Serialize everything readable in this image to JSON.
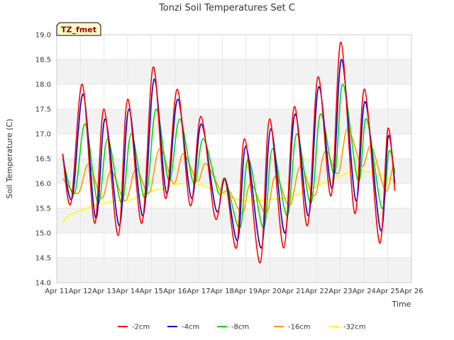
{
  "chart_data": {
    "type": "line",
    "title": "Tonzi Soil Temperatures Set C",
    "xlabel": "Time",
    "ylabel": "Soil Temperature (C)",
    "badge": "TZ_fmet",
    "xlim": [
      11,
      26
    ],
    "ylim": [
      14.0,
      19.0
    ],
    "x_ticks": [
      "Apr 11",
      "Apr 12",
      "Apr 13",
      "Apr 14",
      "Apr 15",
      "Apr 16",
      "Apr 17",
      "Apr 18",
      "Apr 19",
      "Apr 20",
      "Apr 21",
      "Apr 22",
      "Apr 23",
      "Apr 24",
      "Apr 25",
      "Apr 26"
    ],
    "y_ticks": [
      "14.0",
      "14.5",
      "15.0",
      "15.5",
      "16.0",
      "16.5",
      "17.0",
      "17.5",
      "18.0",
      "18.5",
      "19.0"
    ],
    "grid": true,
    "legend_position": "bottom",
    "series": [
      {
        "name": "-2cm",
        "color": "#ff0000",
        "x": [
          11.25,
          11.6,
          12.08,
          12.6,
          13.0,
          13.6,
          14.0,
          14.6,
          15.08,
          15.6,
          16.1,
          16.65,
          17.1,
          17.7,
          18.1,
          18.6,
          18.95,
          19.6,
          20.0,
          20.6,
          21.05,
          21.6,
          22.05,
          22.6,
          23.02,
          23.6,
          24.02,
          24.65,
          25.0,
          25.3
        ],
        "y": [
          16.6,
          15.6,
          18.0,
          15.2,
          17.5,
          14.95,
          17.7,
          15.2,
          18.35,
          15.7,
          17.9,
          15.55,
          17.35,
          15.3,
          16.1,
          14.7,
          16.9,
          14.4,
          17.3,
          14.7,
          17.55,
          15.15,
          18.15,
          15.75,
          18.85,
          15.4,
          17.9,
          14.8,
          17.1,
          15.85
        ]
      },
      {
        "name": "-4cm",
        "color": "#0000cc",
        "x": [
          11.25,
          11.65,
          12.12,
          12.65,
          13.05,
          13.65,
          14.05,
          14.65,
          15.12,
          15.65,
          16.12,
          16.7,
          17.12,
          17.75,
          18.12,
          18.65,
          19.0,
          19.65,
          20.05,
          20.65,
          21.08,
          21.65,
          22.08,
          22.65,
          23.05,
          23.65,
          24.05,
          24.7,
          25.02,
          25.3
        ],
        "y": [
          16.6,
          15.7,
          17.8,
          15.3,
          17.3,
          15.15,
          17.5,
          15.35,
          18.1,
          15.8,
          17.7,
          15.7,
          17.2,
          15.45,
          16.1,
          14.85,
          16.75,
          14.7,
          17.1,
          15.0,
          17.4,
          15.35,
          17.95,
          15.9,
          18.5,
          15.65,
          17.65,
          15.05,
          16.95,
          16.0
        ]
      },
      {
        "name": "-8cm",
        "color": "#00dd00",
        "x": [
          11.25,
          11.75,
          12.2,
          12.75,
          13.15,
          13.75,
          14.15,
          14.75,
          15.2,
          15.75,
          16.2,
          16.8,
          17.2,
          17.85,
          18.15,
          18.75,
          19.1,
          19.75,
          20.12,
          20.75,
          21.15,
          21.75,
          22.15,
          22.75,
          23.1,
          23.75,
          24.1,
          24.75,
          25.05,
          25.3
        ],
        "y": [
          16.5,
          15.8,
          17.2,
          15.6,
          16.9,
          15.6,
          17.0,
          15.7,
          17.5,
          16.05,
          17.3,
          16.0,
          16.9,
          15.8,
          16.05,
          15.1,
          16.5,
          15.1,
          16.7,
          15.35,
          17.0,
          15.6,
          17.4,
          16.2,
          18.0,
          16.05,
          17.3,
          15.5,
          16.65,
          16.2
        ]
      },
      {
        "name": "-16cm",
        "color": "#ff9900",
        "x": [
          11.25,
          11.9,
          12.35,
          12.9,
          13.3,
          13.9,
          14.35,
          14.9,
          15.35,
          15.95,
          16.35,
          16.95,
          17.3,
          17.95,
          18.3,
          18.85,
          19.2,
          19.85,
          20.25,
          20.85,
          21.3,
          21.9,
          22.35,
          22.9,
          23.3,
          23.9,
          24.3,
          24.9,
          25.2,
          25.3
        ],
        "y": [
          16.1,
          15.8,
          16.4,
          15.7,
          16.25,
          15.65,
          16.3,
          15.8,
          16.7,
          16.0,
          16.6,
          16.05,
          16.4,
          15.85,
          15.85,
          15.4,
          16.0,
          15.4,
          16.15,
          15.55,
          16.35,
          15.75,
          16.65,
          16.2,
          17.1,
          16.35,
          16.75,
          15.85,
          16.3,
          16.25
        ]
      },
      {
        "name": "-32cm",
        "color": "#ffff00",
        "x": [
          11.25,
          11.5,
          12.0,
          12.5,
          13.0,
          13.5,
          14.0,
          14.5,
          15.0,
          15.5,
          16.0,
          16.5,
          17.0,
          17.5,
          18.0,
          18.5,
          19.0,
          19.5,
          20.0,
          20.5,
          21.0,
          21.5,
          22.0,
          22.5,
          23.0,
          23.5,
          24.0,
          24.5,
          25.0,
          25.3
        ],
        "y": [
          15.2,
          15.35,
          15.45,
          15.55,
          15.6,
          15.65,
          15.65,
          15.75,
          15.85,
          15.9,
          15.98,
          16.0,
          15.98,
          15.9,
          15.82,
          15.7,
          15.65,
          15.65,
          15.68,
          15.7,
          15.75,
          15.85,
          15.95,
          16.05,
          16.15,
          16.25,
          16.25,
          16.2,
          16.12,
          16.05
        ]
      }
    ]
  }
}
